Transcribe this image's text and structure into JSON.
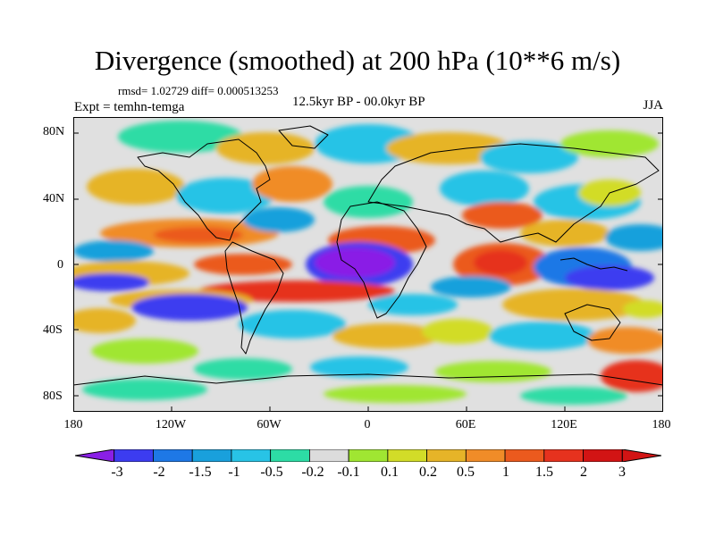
{
  "header": {
    "title": "Divergence (smoothed) at 200 hPa (10**6 m/s)",
    "stats": "rmsd= 1.02729 diff= 0.000513253",
    "experiment": "Expt = temhn-temga",
    "period": "12.5kyr BP - 00.0kyr BP",
    "season": "JJA"
  },
  "axes": {
    "y_ticks": [
      "80N",
      "40N",
      "0",
      "40S",
      "80S"
    ],
    "x_ticks": [
      "180",
      "120W",
      "60W",
      "0",
      "60E",
      "120E",
      "180"
    ]
  },
  "colorbar": {
    "labels": [
      "-3",
      "-2",
      "-1.5",
      "-1",
      "-0.5",
      "-0.2",
      "-0.1",
      "0.1",
      "0.2",
      "0.5",
      "1",
      "1.5",
      "2",
      "3"
    ],
    "colors": [
      "#8a1fe6",
      "#3c3cf0",
      "#1e78e6",
      "#19a0dc",
      "#28c3e6",
      "#2ddca5",
      "#dcdcdc",
      "#a0e632",
      "#d2dc28",
      "#e6b428",
      "#f08c28",
      "#eb5a1e",
      "#e6321e",
      "#d21414"
    ]
  },
  "map": {
    "projection": "cylindrical-equidistant",
    "background_color": "#e0e0e0"
  }
}
